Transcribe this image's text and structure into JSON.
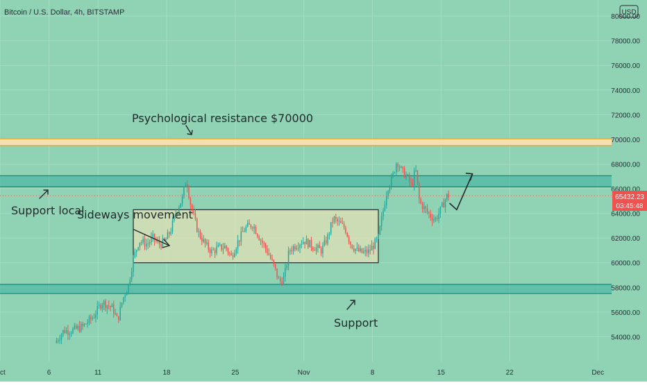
{
  "header": {
    "symbol_title": "Bitcoin / U.S. Dollar, 4h, BITSTAMP",
    "currency_badge": "USD"
  },
  "price_tag": {
    "price": "65432.23",
    "countdown": "03:45:48"
  },
  "colors": {
    "background": "#8fd3b4",
    "up_candle": "#26a69a",
    "down_candle": "#ef5350",
    "resistance_zone": "#ffe0b2",
    "resistance_line": "#ff9800",
    "support_zone": "#26a69a",
    "sideways_box": "#ffe4b5",
    "text": "#2a2e39",
    "annotation_text": "#1f2a2a",
    "price_tag_bg": "#ef5350"
  },
  "annotations": {
    "psych_resistance": "Psychological resistance $70000",
    "support_local": "Support local",
    "sideways": "Sideways movement",
    "support": "Support"
  },
  "chart_data": {
    "type": "candlestick",
    "title": "Bitcoin / U.S. Dollar, 4h, BITSTAMP",
    "y_axis": {
      "ticks": [
        54000,
        56000,
        58000,
        60000,
        62000,
        64000,
        66000,
        68000,
        70000,
        72000,
        74000,
        76000,
        78000,
        80000
      ],
      "tick_labels": [
        "54000.00",
        "56000.00",
        "58000.00",
        "60000.00",
        "62000.00",
        "64000.00",
        "66000.00",
        "68000.00",
        "70000.00",
        "72000.00",
        "74000.00",
        "76000.00",
        "78000.00",
        "80000.00"
      ],
      "range": [
        52000,
        81300
      ]
    },
    "x_axis": {
      "tick_labels": [
        "Oct",
        "6",
        "11",
        "18",
        "25",
        "Nov",
        "8",
        "15",
        "22",
        "Dec"
      ],
      "ticks_day": [
        0,
        5,
        10,
        17,
        24,
        31,
        38,
        45,
        52,
        61
      ],
      "range_day": [
        0,
        62.4
      ]
    },
    "last_price": 65432.23,
    "zones": [
      {
        "name": "psychological_resistance",
        "low": 69500,
        "high": 70050
      },
      {
        "name": "support_local",
        "low": 66150,
        "high": 67050
      },
      {
        "name": "support",
        "low": 57500,
        "high": 58250
      }
    ],
    "sideways_box": {
      "day_start": 13.6,
      "day_end": 38.6,
      "low": 60000,
      "high": 64300
    },
    "price_path": [
      [
        5.6,
        53500
      ],
      [
        6.5,
        54500
      ],
      [
        7.3,
        54500
      ],
      [
        8.4,
        54800
      ],
      [
        9.5,
        55600
      ],
      [
        10.4,
        56800
      ],
      [
        10.9,
        56600
      ],
      [
        11.5,
        56300
      ],
      [
        12.0,
        55300
      ],
      [
        12.5,
        57000
      ],
      [
        13.1,
        58200
      ],
      [
        13.6,
        60300
      ],
      [
        14.2,
        61800
      ],
      [
        15.0,
        61500
      ],
      [
        15.6,
        62000
      ],
      [
        16.2,
        61500
      ],
      [
        16.8,
        61700
      ],
      [
        17.4,
        62600
      ],
      [
        18.0,
        64200
      ],
      [
        18.6,
        65200
      ],
      [
        19.0,
        66800
      ],
      [
        19.5,
        64500
      ],
      [
        20.2,
        62500
      ],
      [
        21.0,
        61400
      ],
      [
        21.6,
        60900
      ],
      [
        22.3,
        61200
      ],
      [
        23.0,
        61300
      ],
      [
        23.6,
        60500
      ],
      [
        24.2,
        61600
      ],
      [
        25.0,
        62800
      ],
      [
        25.8,
        63100
      ],
      [
        26.5,
        62000
      ],
      [
        27.3,
        60900
      ],
      [
        28.0,
        59600
      ],
      [
        28.5,
        58400
      ],
      [
        29.0,
        58800
      ],
      [
        29.5,
        61000
      ],
      [
        30.3,
        61500
      ],
      [
        31.0,
        61800
      ],
      [
        31.6,
        61500
      ],
      [
        32.2,
        61200
      ],
      [
        32.8,
        61000
      ],
      [
        33.4,
        62000
      ],
      [
        34.0,
        63600
      ],
      [
        34.6,
        63200
      ],
      [
        35.2,
        62800
      ],
      [
        35.8,
        61500
      ],
      [
        36.4,
        61000
      ],
      [
        37.0,
        60800
      ],
      [
        37.6,
        60900
      ],
      [
        38.1,
        61400
      ],
      [
        38.6,
        62000
      ],
      [
        39.0,
        63800
      ],
      [
        39.5,
        66000
      ],
      [
        40.0,
        66800
      ],
      [
        40.5,
        68300
      ],
      [
        41.0,
        67400
      ],
      [
        41.5,
        67000
      ],
      [
        42.0,
        66200
      ],
      [
        42.4,
        67600
      ],
      [
        42.8,
        64900
      ],
      [
        43.4,
        64300
      ],
      [
        43.9,
        63800
      ],
      [
        44.4,
        63500
      ],
      [
        44.9,
        64200
      ],
      [
        45.2,
        64700
      ],
      [
        45.6,
        65400
      ],
      [
        45.9,
        65432
      ]
    ],
    "projected_move": {
      "from_day": 45.9,
      "from_price": 64600,
      "to_day": 48.2,
      "to_price": 67200
    }
  }
}
